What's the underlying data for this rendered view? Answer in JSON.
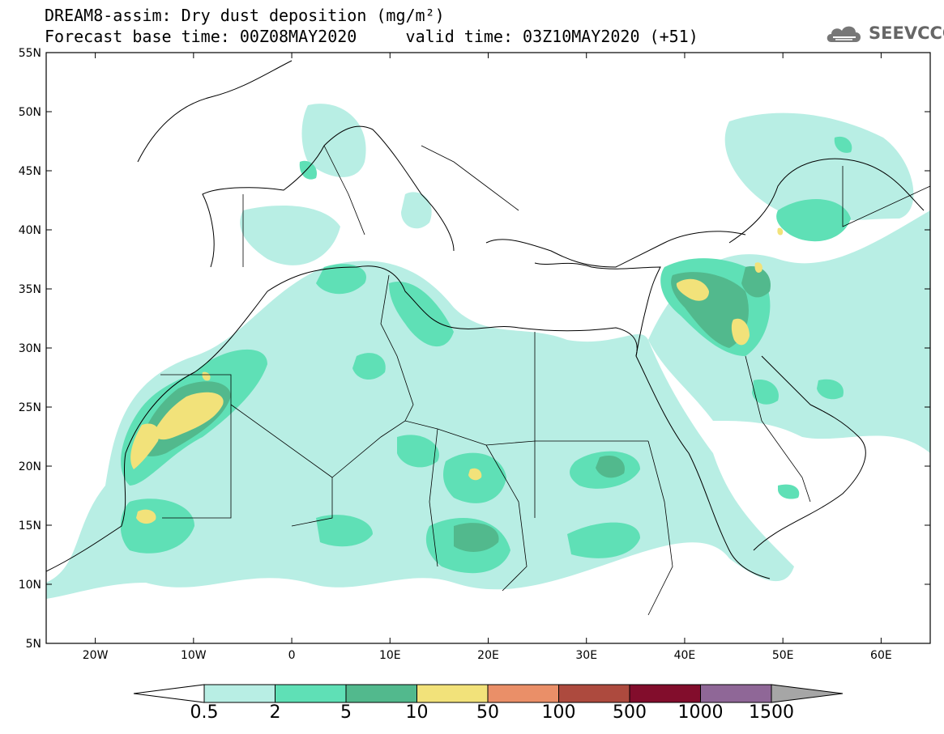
{
  "title": {
    "line1": "DREAM8-assim: Dry dust deposition (mg/m²)",
    "line2_left": "Forecast base time: 00Z08MAY2020",
    "line2_right": "valid time: 03Z10MAY2020 (+51)"
  },
  "logo": {
    "text": "SEEVCCC",
    "icon": "cloud-icon"
  },
  "map": {
    "lon_range": [
      -25,
      65
    ],
    "lat_range": [
      5,
      55
    ],
    "lat_ticks": [
      "5N",
      "10N",
      "15N",
      "20N",
      "25N",
      "30N",
      "35N",
      "40N",
      "45N",
      "50N",
      "55N"
    ],
    "lon_ticks": [
      "20W",
      "10W",
      "0",
      "10E",
      "20E",
      "30E",
      "40E",
      "50E",
      "60E"
    ]
  },
  "colorbar": {
    "labels": [
      "0.5",
      "2",
      "5",
      "10",
      "50",
      "100",
      "500",
      "1000",
      "1500"
    ],
    "colors": [
      "#b8eee4",
      "#5fe0b6",
      "#52b98d",
      "#f2e27a",
      "#ea8f68",
      "#ad4a3e",
      "#820d2c",
      "#8f6797",
      "#a6a6a6"
    ],
    "under_color": "#ffffff"
  }
}
